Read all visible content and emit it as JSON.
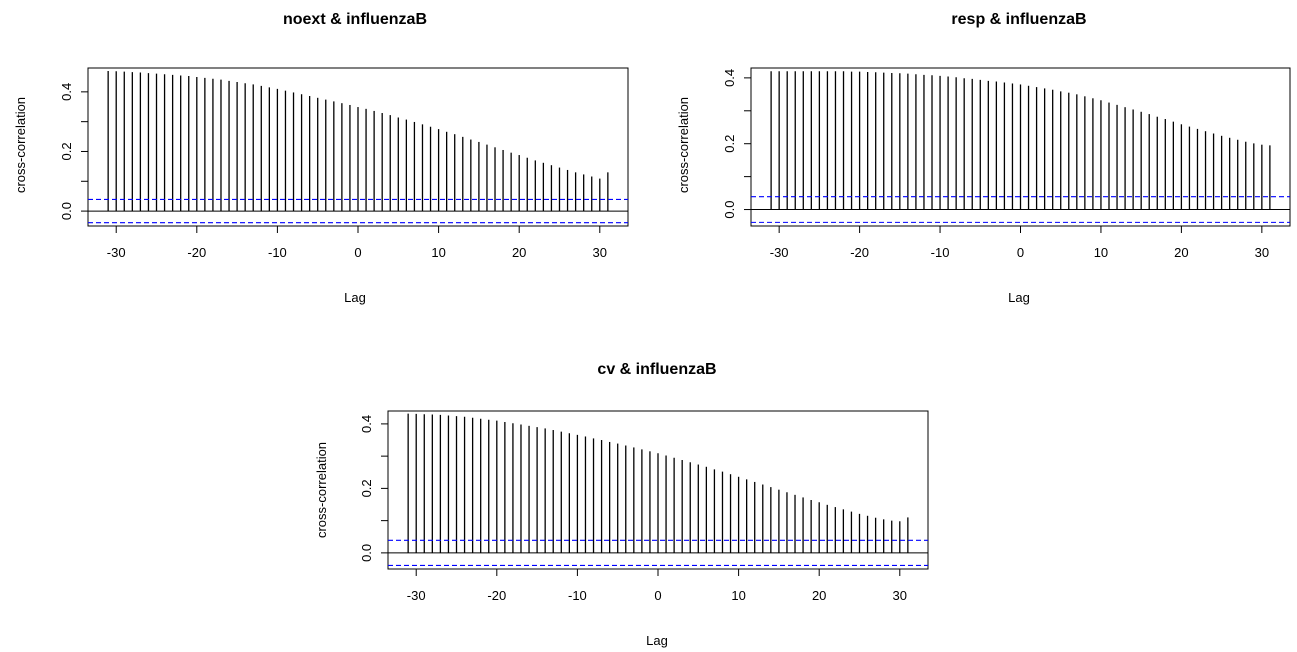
{
  "chart_data": [
    {
      "type": "bar",
      "title": "noext & influenzaB",
      "xlabel": "Lag",
      "ylabel": "cross-correlation",
      "xlim": [
        -33.5,
        33.5
      ],
      "ylim": [
        -0.05,
        0.48
      ],
      "xticks": [
        -30,
        -20,
        -10,
        0,
        10,
        20,
        30
      ],
      "yticks": [
        0.0,
        0.2,
        0.4
      ],
      "ytick_labels": [
        "0.0",
        "0.2",
        "0.4"
      ],
      "x": [
        -31,
        -30,
        -29,
        -28,
        -27,
        -26,
        -25,
        -24,
        -23,
        -22,
        -21,
        -20,
        -19,
        -18,
        -17,
        -16,
        -15,
        -14,
        -13,
        -12,
        -11,
        -10,
        -9,
        -8,
        -7,
        -6,
        -5,
        -4,
        -3,
        -2,
        -1,
        0,
        1,
        2,
        3,
        4,
        5,
        6,
        7,
        8,
        9,
        10,
        11,
        12,
        13,
        14,
        15,
        16,
        17,
        18,
        19,
        20,
        21,
        22,
        23,
        24,
        25,
        26,
        27,
        28,
        29,
        30,
        31
      ],
      "values": [
        0.47,
        0.469,
        0.468,
        0.466,
        0.465,
        0.463,
        0.461,
        0.459,
        0.457,
        0.455,
        0.453,
        0.45,
        0.447,
        0.444,
        0.441,
        0.437,
        0.433,
        0.429,
        0.425,
        0.42,
        0.415,
        0.41,
        0.404,
        0.398,
        0.392,
        0.386,
        0.38,
        0.374,
        0.368,
        0.362,
        0.356,
        0.349,
        0.343,
        0.336,
        0.329,
        0.322,
        0.314,
        0.307,
        0.299,
        0.291,
        0.283,
        0.275,
        0.266,
        0.258,
        0.249,
        0.24,
        0.232,
        0.223,
        0.214,
        0.205,
        0.196,
        0.188,
        0.179,
        0.17,
        0.162,
        0.154,
        0.146,
        0.138,
        0.13,
        0.123,
        0.116,
        0.109,
        0.13
      ],
      "ci": 0.039,
      "colors": {
        "bars": "#000000",
        "ci": "#0000ff"
      }
    },
    {
      "type": "bar",
      "title": "resp & influenzaB",
      "xlabel": "Lag",
      "ylabel": "cross-correlation",
      "xlim": [
        -33.5,
        33.5
      ],
      "ylim": [
        -0.05,
        0.43
      ],
      "xticks": [
        -30,
        -20,
        -10,
        0,
        10,
        20,
        30
      ],
      "yticks": [
        0.0,
        0.2,
        0.4
      ],
      "ytick_labels": [
        "0.0",
        "0.2",
        "0.4"
      ],
      "x": [
        -31,
        -30,
        -29,
        -28,
        -27,
        -26,
        -25,
        -24,
        -23,
        -22,
        -21,
        -20,
        -19,
        -18,
        -17,
        -16,
        -15,
        -14,
        -13,
        -12,
        -11,
        -10,
        -9,
        -8,
        -7,
        -6,
        -5,
        -4,
        -3,
        -2,
        -1,
        0,
        1,
        2,
        3,
        4,
        5,
        6,
        7,
        8,
        9,
        10,
        11,
        12,
        13,
        14,
        15,
        16,
        17,
        18,
        19,
        20,
        21,
        22,
        23,
        24,
        25,
        26,
        27,
        28,
        29,
        30,
        31
      ],
      "values": [
        0.42,
        0.42,
        0.42,
        0.42,
        0.42,
        0.42,
        0.42,
        0.42,
        0.42,
        0.42,
        0.419,
        0.419,
        0.418,
        0.417,
        0.416,
        0.415,
        0.414,
        0.413,
        0.411,
        0.409,
        0.408,
        0.406,
        0.404,
        0.402,
        0.399,
        0.397,
        0.394,
        0.391,
        0.389,
        0.386,
        0.383,
        0.38,
        0.376,
        0.372,
        0.368,
        0.364,
        0.359,
        0.355,
        0.35,
        0.344,
        0.338,
        0.332,
        0.325,
        0.318,
        0.311,
        0.304,
        0.297,
        0.29,
        0.282,
        0.275,
        0.267,
        0.259,
        0.252,
        0.245,
        0.238,
        0.231,
        0.224,
        0.218,
        0.212,
        0.206,
        0.201,
        0.197,
        0.195
      ],
      "ci": 0.039,
      "colors": {
        "bars": "#000000",
        "ci": "#0000ff"
      }
    },
    {
      "type": "bar",
      "title": "cv & influenzaB",
      "xlabel": "Lag",
      "ylabel": "cross-correlation",
      "xlim": [
        -33.5,
        33.5
      ],
      "ylim": [
        -0.05,
        0.44
      ],
      "xticks": [
        -30,
        -20,
        -10,
        0,
        10,
        20,
        30
      ],
      "yticks": [
        0.0,
        0.2,
        0.4
      ],
      "ytick_labels": [
        "0.0",
        "0.2",
        "0.4"
      ],
      "x": [
        -31,
        -30,
        -29,
        -28,
        -27,
        -26,
        -25,
        -24,
        -23,
        -22,
        -21,
        -20,
        -19,
        -18,
        -17,
        -16,
        -15,
        -14,
        -13,
        -12,
        -11,
        -10,
        -9,
        -8,
        -7,
        -6,
        -5,
        -4,
        -3,
        -2,
        -1,
        0,
        1,
        2,
        3,
        4,
        5,
        6,
        7,
        8,
        9,
        10,
        11,
        12,
        13,
        14,
        15,
        16,
        17,
        18,
        19,
        20,
        21,
        22,
        23,
        24,
        25,
        26,
        27,
        28,
        29,
        30,
        31
      ],
      "values": [
        0.432,
        0.431,
        0.43,
        0.429,
        0.428,
        0.426,
        0.424,
        0.422,
        0.419,
        0.416,
        0.413,
        0.41,
        0.406,
        0.402,
        0.398,
        0.394,
        0.39,
        0.386,
        0.381,
        0.376,
        0.371,
        0.366,
        0.361,
        0.355,
        0.35,
        0.344,
        0.339,
        0.333,
        0.327,
        0.321,
        0.315,
        0.309,
        0.302,
        0.295,
        0.288,
        0.281,
        0.274,
        0.267,
        0.259,
        0.252,
        0.244,
        0.236,
        0.228,
        0.22,
        0.212,
        0.204,
        0.196,
        0.188,
        0.18,
        0.172,
        0.164,
        0.157,
        0.149,
        0.142,
        0.135,
        0.128,
        0.121,
        0.115,
        0.109,
        0.104,
        0.1,
        0.098,
        0.11
      ],
      "ci": 0.039,
      "colors": {
        "bars": "#000000",
        "ci": "#0000ff"
      }
    }
  ]
}
